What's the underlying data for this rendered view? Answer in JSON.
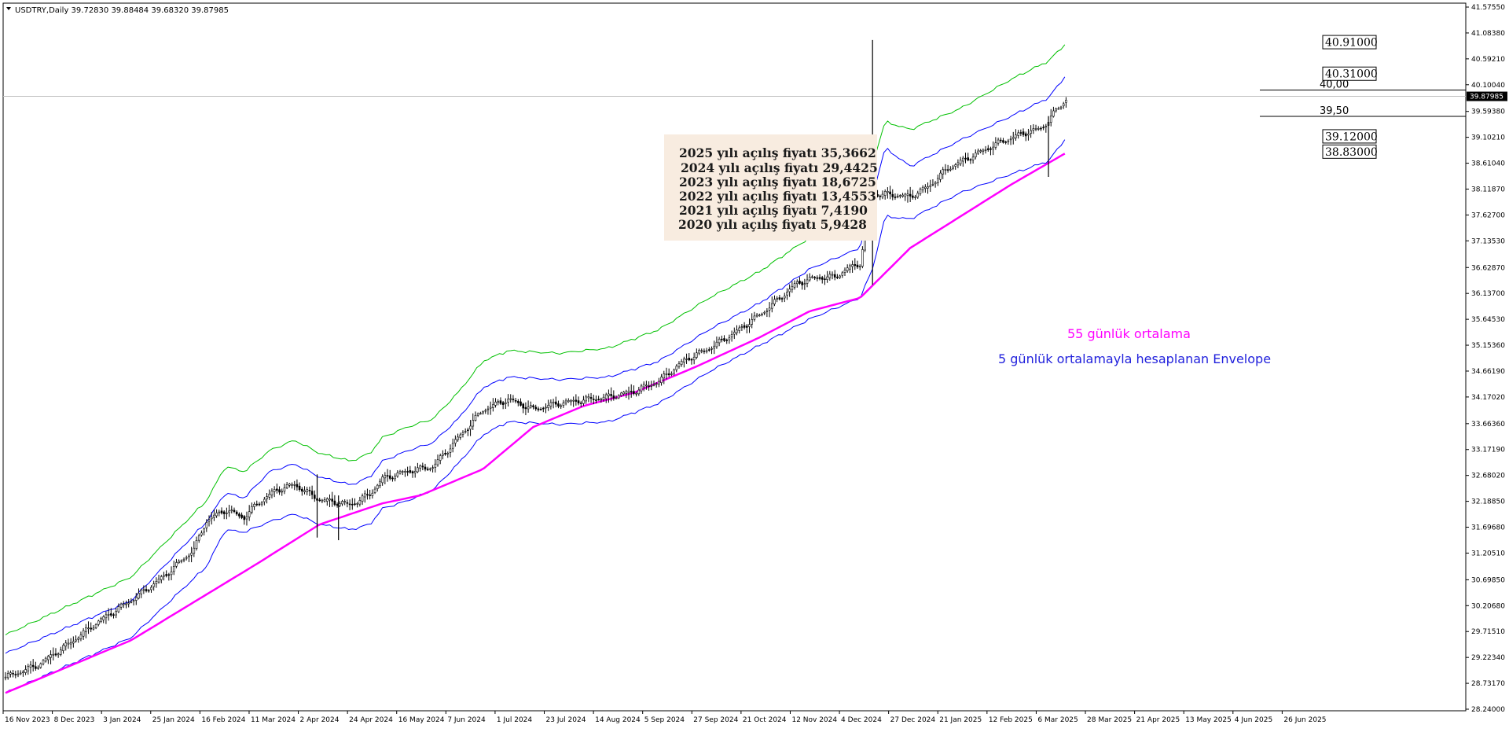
{
  "window": {
    "symbol_line": "USDTRY,Daily  39.72830 39.88484 39.68320 39.87985"
  },
  "chart_data": {
    "type": "candlestick",
    "symbol": "USDTRY",
    "timeframe": "Daily",
    "ohlc_last": {
      "open": 39.7283,
      "high": 39.88484,
      "low": 39.6832,
      "close": 39.87985
    },
    "current_price_label": "39.87985",
    "ylim": [
      28.2402,
      41.5755
    ],
    "y_ticks": [
      "41.57550",
      "41.08380",
      "40.59210",
      "40.10040",
      "39.59380",
      "39.10210",
      "38.61040",
      "38.11870",
      "37.62700",
      "37.13530",
      "36.62870",
      "36.13700",
      "35.64530",
      "35.15360",
      "34.66190",
      "34.17020",
      "33.66360",
      "33.17190",
      "32.68020",
      "32.18850",
      "31.69680",
      "31.20510",
      "30.69850",
      "30.20680",
      "29.71510",
      "29.22340",
      "28.73170",
      "28.24000"
    ],
    "x_ticks": [
      "16 Nov 2023",
      "8 Dec 2023",
      "3 Jan 2024",
      "25 Jan 2024",
      "16 Feb 2024",
      "11 Mar 2024",
      "2 Apr 2024",
      "24 Apr 2024",
      "16 May 2024",
      "7 Jun 2024",
      "1 Jul 2024",
      "23 Jul 2024",
      "14 Aug 2024",
      "5 Sep 2024",
      "27 Sep 2024",
      "21 Oct 2024",
      "12 Nov 2024",
      "4 Dec 2024",
      "27 Dec 2024",
      "21 Jan 2025",
      "12 Feb 2025",
      "6 Mar 2025",
      "28 Mar 2025",
      "21 Apr 2025",
      "13 May 2025",
      "4 Jun 2025",
      "26 Jun 2025"
    ],
    "close_path": [
      [
        0,
        28.85
      ],
      [
        25,
        29.05
      ],
      [
        50,
        29.45
      ],
      [
        75,
        29.9
      ],
      [
        100,
        30.3
      ],
      [
        125,
        30.75
      ],
      [
        150,
        31.3
      ],
      [
        160,
        31.85
      ],
      [
        175,
        32.05
      ],
      [
        190,
        31.9
      ],
      [
        200,
        32.15
      ],
      [
        215,
        32.4
      ],
      [
        230,
        32.5
      ],
      [
        250,
        32.2
      ],
      [
        275,
        32.1
      ],
      [
        290,
        32.3
      ],
      [
        300,
        32.6
      ],
      [
        320,
        32.75
      ],
      [
        340,
        32.85
      ],
      [
        360,
        33.4
      ],
      [
        380,
        33.95
      ],
      [
        400,
        34.15
      ],
      [
        420,
        33.95
      ],
      [
        440,
        34.05
      ],
      [
        460,
        34.1
      ],
      [
        480,
        34.15
      ],
      [
        500,
        34.25
      ],
      [
        520,
        34.45
      ],
      [
        540,
        34.85
      ],
      [
        560,
        35.1
      ],
      [
        580,
        35.4
      ],
      [
        600,
        35.75
      ],
      [
        615,
        36.05
      ],
      [
        630,
        36.35
      ],
      [
        645,
        36.45
      ],
      [
        660,
        36.45
      ],
      [
        670,
        36.6
      ],
      [
        680,
        36.7
      ],
      [
        690,
        38.0
      ],
      [
        700,
        38.0
      ],
      [
        720,
        37.95
      ],
      [
        735,
        38.15
      ],
      [
        750,
        38.5
      ],
      [
        770,
        38.75
      ],
      [
        790,
        39.0
      ],
      [
        810,
        39.2
      ],
      [
        825,
        39.3
      ],
      [
        835,
        39.6
      ],
      [
        845,
        39.88
      ]
    ],
    "ma55_path": [
      [
        0,
        28.55
      ],
      [
        100,
        29.55
      ],
      [
        200,
        31.0
      ],
      [
        250,
        31.75
      ],
      [
        300,
        32.15
      ],
      [
        330,
        32.3
      ],
      [
        380,
        32.8
      ],
      [
        420,
        33.6
      ],
      [
        460,
        34.0
      ],
      [
        500,
        34.25
      ],
      [
        550,
        34.75
      ],
      [
        600,
        35.3
      ],
      [
        640,
        35.8
      ],
      [
        680,
        36.05
      ],
      [
        720,
        37.0
      ],
      [
        800,
        38.2
      ],
      [
        845,
        38.82
      ]
    ],
    "envelope_upper_path": [
      [
        0,
        29.3
      ],
      [
        100,
        30.3
      ],
      [
        160,
        31.8
      ],
      [
        175,
        32.35
      ],
      [
        190,
        32.25
      ],
      [
        210,
        32.75
      ],
      [
        230,
        32.9
      ],
      [
        250,
        32.65
      ],
      [
        275,
        32.5
      ],
      [
        290,
        32.65
      ],
      [
        300,
        32.95
      ],
      [
        320,
        33.15
      ],
      [
        340,
        33.3
      ],
      [
        360,
        33.75
      ],
      [
        380,
        34.35
      ],
      [
        400,
        34.55
      ],
      [
        440,
        34.5
      ],
      [
        480,
        34.55
      ],
      [
        520,
        34.85
      ],
      [
        560,
        35.45
      ],
      [
        600,
        35.95
      ],
      [
        640,
        36.6
      ],
      [
        680,
        37.0
      ],
      [
        690,
        38.0
      ],
      [
        700,
        38.9
      ],
      [
        720,
        38.55
      ],
      [
        760,
        39.05
      ],
      [
        800,
        39.5
      ],
      [
        830,
        39.85
      ],
      [
        845,
        40.31
      ]
    ],
    "envelope_lower_path": [
      [
        0,
        28.55
      ],
      [
        100,
        29.6
      ],
      [
        160,
        30.95
      ],
      [
        175,
        31.65
      ],
      [
        190,
        31.6
      ],
      [
        210,
        31.8
      ],
      [
        230,
        31.95
      ],
      [
        250,
        31.75
      ],
      [
        275,
        31.65
      ],
      [
        290,
        31.75
      ],
      [
        300,
        32.05
      ],
      [
        320,
        32.2
      ],
      [
        340,
        32.4
      ],
      [
        360,
        32.9
      ],
      [
        380,
        33.45
      ],
      [
        400,
        33.7
      ],
      [
        440,
        33.65
      ],
      [
        480,
        33.7
      ],
      [
        520,
        34.05
      ],
      [
        560,
        34.65
      ],
      [
        600,
        35.15
      ],
      [
        640,
        35.65
      ],
      [
        680,
        36.05
      ],
      [
        690,
        36.6
      ],
      [
        700,
        37.6
      ],
      [
        720,
        37.55
      ],
      [
        760,
        38.05
      ],
      [
        800,
        38.4
      ],
      [
        830,
        38.65
      ],
      [
        845,
        39.12
      ]
    ],
    "envelope_outer_path": [
      [
        0,
        29.65
      ],
      [
        100,
        30.75
      ],
      [
        160,
        32.2
      ],
      [
        175,
        32.85
      ],
      [
        190,
        32.75
      ],
      [
        210,
        33.15
      ],
      [
        230,
        33.35
      ],
      [
        250,
        33.1
      ],
      [
        275,
        32.95
      ],
      [
        290,
        33.1
      ],
      [
        300,
        33.4
      ],
      [
        320,
        33.6
      ],
      [
        340,
        33.75
      ],
      [
        360,
        34.25
      ],
      [
        380,
        34.85
      ],
      [
        400,
        35.05
      ],
      [
        440,
        35.0
      ],
      [
        480,
        35.1
      ],
      [
        520,
        35.45
      ],
      [
        560,
        36.05
      ],
      [
        600,
        36.55
      ],
      [
        640,
        37.2
      ],
      [
        680,
        37.65
      ],
      [
        690,
        38.6
      ],
      [
        700,
        39.4
      ],
      [
        720,
        39.25
      ],
      [
        760,
        39.65
      ],
      [
        800,
        40.2
      ],
      [
        830,
        40.55
      ],
      [
        845,
        40.91
      ]
    ],
    "spikes": [
      {
        "i": 248,
        "low": 31.5,
        "high": 32.7
      },
      {
        "i": 265,
        "low": 31.45,
        "high": 32.3
      },
      {
        "i": 690,
        "low": 36.3,
        "high": 40.95
      },
      {
        "i": 830,
        "low": 38.35,
        "high": 39.5
      }
    ],
    "price_boxes": [
      {
        "label": "40.91000",
        "value": 40.91
      },
      {
        "label": "40.31000",
        "value": 40.31
      },
      {
        "label": "39.12000",
        "value": 39.12
      },
      {
        "label": "38.83000",
        "value": 38.83
      }
    ],
    "hlines": [
      {
        "label": "40,00",
        "value": 40.0
      },
      {
        "label": "39,50",
        "value": 39.5
      }
    ],
    "annotations": {
      "note_lines": [
        "2025  yılı açılış fiyatı 35,3662",
        "2024 yılı açılış fiyatı 29,4425",
        "2023 yılı açılış fiyatı 18,6725",
        "2022 yılı açılış fiyatı 13,4553",
        "2021 yılı açılış fiyatı 7,4190",
        "2020 yılı açılış fiyatı 5,9428"
      ],
      "ma55_label": "55 günlük ortalama",
      "envelope_label": "5 günlük ortalamayla hesaplanan Envelope"
    },
    "colors": {
      "candles": "#000000",
      "ma55": "#ff00ff",
      "envelope_inner": "#0000ff",
      "envelope_outer": "#00c000",
      "note_bg": "#f8ece0",
      "price_line": "#c0c0c0"
    }
  }
}
